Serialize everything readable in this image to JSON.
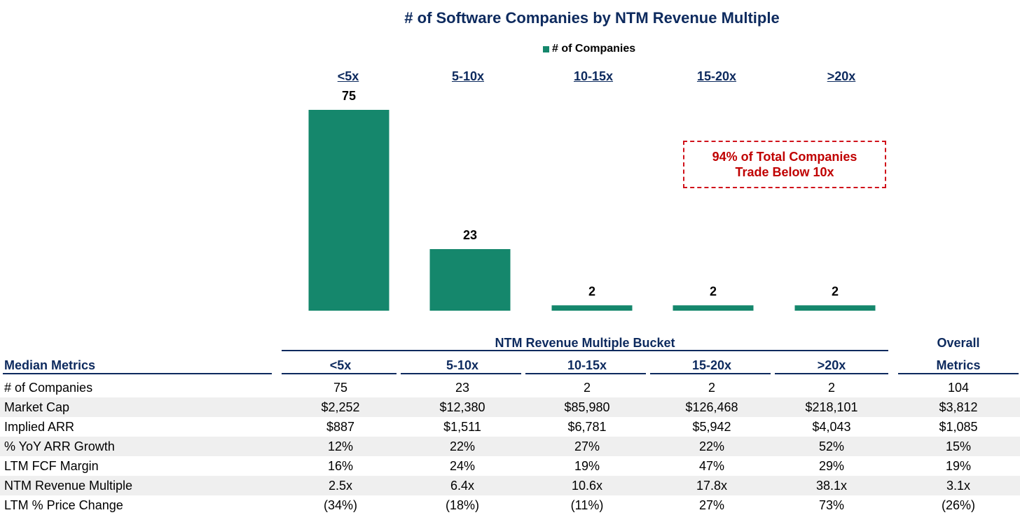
{
  "chart_data": {
    "type": "bar",
    "title": "# of Software Companies by NTM Revenue Multiple",
    "categories": [
      "<5x",
      "5-10x",
      "10-15x",
      "15-20x",
      ">20x"
    ],
    "series": [
      {
        "name": "# of Companies",
        "values": [
          75,
          23,
          2,
          2,
          2
        ]
      }
    ],
    "data_labels": [
      "75",
      "23",
      "2",
      "2",
      "2"
    ],
    "legend": "top-center",
    "grid": false,
    "bar_color": "#15876c",
    "annotation": [
      "94% of Total Companies",
      "Trade Below 10x"
    ]
  },
  "table": {
    "bucket_header": "NTM Revenue Multiple Bucket",
    "label_header": "Median Metrics",
    "overall_header": [
      "Overall",
      "Metrics"
    ],
    "columns": [
      "<5x",
      "5-10x",
      "10-15x",
      "15-20x",
      ">20x"
    ],
    "rows": [
      {
        "label": "# of Companies",
        "values": [
          "75",
          "23",
          "2",
          "2",
          "2"
        ],
        "overall": "104"
      },
      {
        "label": "Market Cap",
        "values": [
          "$2,252",
          "$12,380",
          "$85,980",
          "$126,468",
          "$218,101"
        ],
        "overall": "$3,812"
      },
      {
        "label": "Implied ARR",
        "values": [
          "$887",
          "$1,511",
          "$6,781",
          "$5,942",
          "$4,043"
        ],
        "overall": "$1,085"
      },
      {
        "label": "% YoY ARR Growth",
        "values": [
          "12%",
          "22%",
          "27%",
          "22%",
          "52%"
        ],
        "overall": "15%"
      },
      {
        "label": "LTM FCF Margin",
        "values": [
          "16%",
          "24%",
          "19%",
          "47%",
          "29%"
        ],
        "overall": "19%"
      },
      {
        "label": "NTM Revenue Multiple",
        "values": [
          "2.5x",
          "6.4x",
          "10.6x",
          "17.8x",
          "38.1x"
        ],
        "overall": "3.1x"
      },
      {
        "label": "LTM % Price Change",
        "values": [
          "(34%)",
          "(18%)",
          "(11%)",
          "27%",
          "73%"
        ],
        "overall": "(26%)"
      }
    ]
  }
}
